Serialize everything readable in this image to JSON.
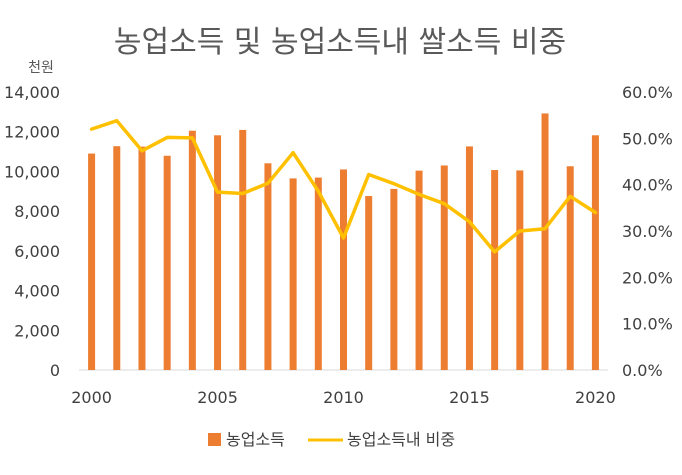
{
  "chart_data": {
    "type": "bar",
    "title": "농업소득 및 농업소득내 쌀소득 비중",
    "y_unit_label": "천원",
    "x": [
      2000,
      2001,
      2002,
      2003,
      2004,
      2005,
      2006,
      2007,
      2008,
      2009,
      2010,
      2011,
      2012,
      2013,
      2014,
      2015,
      2016,
      2017,
      2018,
      2019,
      2020
    ],
    "x_tick_labels": [
      "2000",
      "2005",
      "2010",
      "2015",
      "2020"
    ],
    "series": [
      {
        "name": "농업소득",
        "type": "bar",
        "axis": "left",
        "color": "#ED7D31",
        "values": [
          10900,
          11270,
          11250,
          10790,
          12050,
          11820,
          12090,
          10410,
          9650,
          9690,
          10100,
          8760,
          9120,
          10040,
          10300,
          11260,
          10070,
          10050,
          12920,
          10260,
          11820
        ]
      },
      {
        "name": "농업소득내 비중",
        "type": "line",
        "axis": "right",
        "color": "#FFC000",
        "values": [
          52.0,
          53.8,
          47.3,
          50.2,
          50.1,
          38.4,
          38.1,
          40.3,
          46.9,
          38.6,
          28.5,
          42.2,
          40.2,
          37.9,
          35.9,
          32.0,
          25.5,
          30.0,
          30.5,
          37.5,
          34.0
        ]
      }
    ],
    "y_left": {
      "lim": [
        0,
        14000
      ],
      "ticks": [
        "0",
        "2,000",
        "4,000",
        "6,000",
        "8,000",
        "10,000",
        "12,000",
        "14,000"
      ]
    },
    "y_right": {
      "lim": [
        0,
        60
      ],
      "ticks": [
        "0.0%",
        "10.0%",
        "20.0%",
        "30.0%",
        "40.0%",
        "50.0%",
        "60.0%"
      ]
    },
    "grid": false,
    "legend_position": "bottom"
  }
}
